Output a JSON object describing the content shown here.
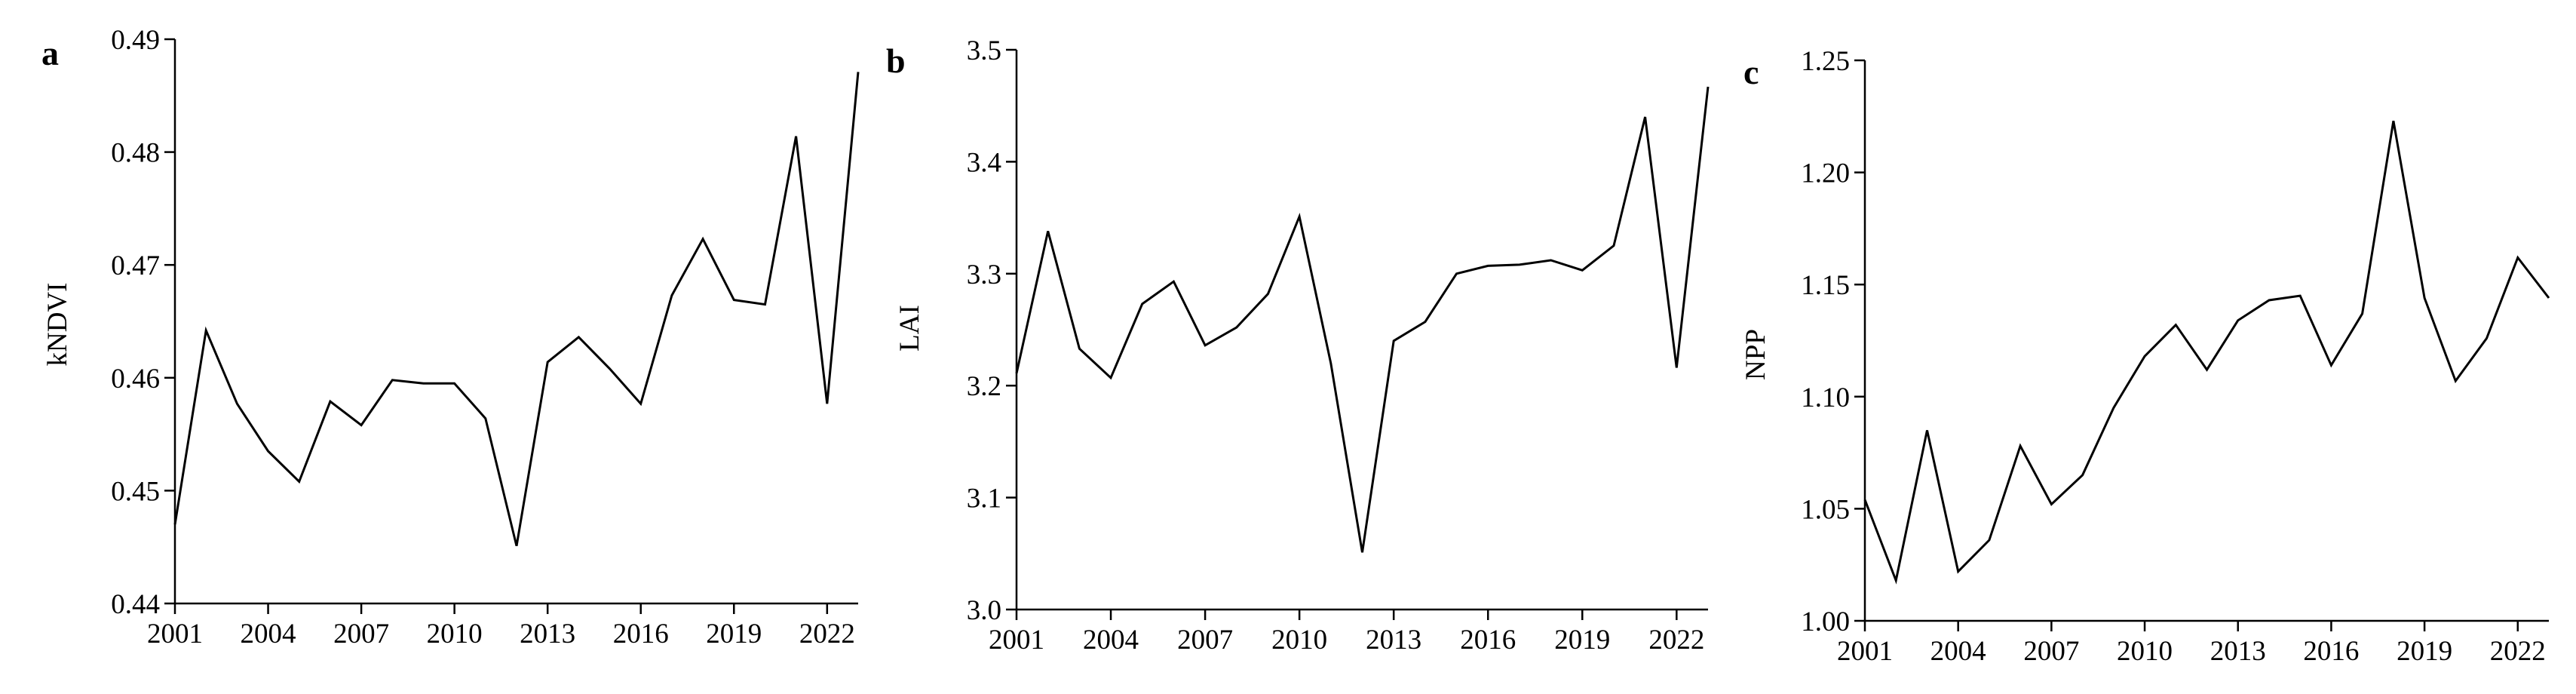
{
  "chart_data": [
    {
      "type": "line",
      "panel_label": "a",
      "ylabel": "kNDVI",
      "xlabel": "",
      "xlim": [
        2001,
        2023
      ],
      "ylim": [
        0.44,
        0.49
      ],
      "x_ticks": [
        2001,
        2004,
        2007,
        2010,
        2013,
        2016,
        2019,
        2022
      ],
      "y_ticks": [
        "0.44",
        "0.45",
        "0.46",
        "0.47",
        "0.48",
        "0.49"
      ],
      "grid": false,
      "x": [
        2001,
        2002,
        2003,
        2004,
        2005,
        2006,
        2007,
        2008,
        2009,
        2010,
        2011,
        2012,
        2013,
        2014,
        2015,
        2016,
        2017,
        2018,
        2019,
        2020,
        2021,
        2022,
        2023
      ],
      "values": [
        0.447,
        0.4642,
        0.4577,
        0.4535,
        0.4508,
        0.4579,
        0.4558,
        0.4598,
        0.4595,
        0.4595,
        0.4564,
        0.4451,
        0.4614,
        0.4636,
        0.4608,
        0.4577,
        0.4673,
        0.4723,
        0.4669,
        0.4665,
        0.4814,
        0.4577,
        0.4871
      ]
    },
    {
      "type": "line",
      "panel_label": "b",
      "ylabel": "LAI",
      "xlabel": "",
      "xlim": [
        2001,
        2023
      ],
      "ylim": [
        3.0,
        3.5
      ],
      "x_ticks": [
        2001,
        2004,
        2007,
        2010,
        2013,
        2016,
        2019,
        2022
      ],
      "y_ticks": [
        "3.0",
        "3.1",
        "3.2",
        "3.3",
        "3.4",
        "3.5"
      ],
      "grid": false,
      "x": [
        2001,
        2002,
        2003,
        2004,
        2005,
        2006,
        2007,
        2008,
        2009,
        2010,
        2011,
        2012,
        2013,
        2014,
        2015,
        2016,
        2017,
        2018,
        2019,
        2020,
        2021,
        2022,
        2023
      ],
      "values": [
        3.211,
        3.338,
        3.233,
        3.207,
        3.273,
        3.293,
        3.236,
        3.252,
        3.282,
        3.351,
        3.22,
        3.051,
        3.24,
        3.257,
        3.3,
        3.307,
        3.308,
        3.312,
        3.303,
        3.325,
        3.44,
        3.216,
        3.467
      ]
    },
    {
      "type": "line",
      "panel_label": "c",
      "ylabel": "NPP",
      "xlabel": "",
      "xlim": [
        2001,
        2023
      ],
      "ylim": [
        1.0,
        1.25
      ],
      "x_ticks": [
        2001,
        2004,
        2007,
        2010,
        2013,
        2016,
        2019,
        2022
      ],
      "y_ticks": [
        "1.00",
        "1.05",
        "1.10",
        "1.15",
        "1.20",
        "1.25"
      ],
      "grid": false,
      "x": [
        2001,
        2002,
        2003,
        2004,
        2005,
        2006,
        2007,
        2008,
        2009,
        2010,
        2011,
        2012,
        2013,
        2014,
        2015,
        2016,
        2017,
        2018,
        2019,
        2020,
        2021,
        2022,
        2023
      ],
      "values": [
        1.054,
        1.018,
        1.085,
        1.022,
        1.036,
        1.078,
        1.052,
        1.065,
        1.095,
        1.118,
        1.132,
        1.112,
        1.134,
        1.143,
        1.145,
        1.114,
        1.137,
        1.223,
        1.144,
        1.107,
        1.126,
        1.162,
        1.144
      ]
    }
  ]
}
